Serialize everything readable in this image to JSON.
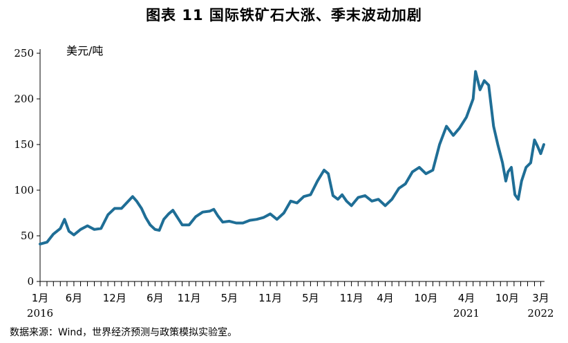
{
  "title": "图表 11   国际铁矿石大涨、季末波动加剧",
  "unit_label": "美元/吨",
  "source": "数据来源：Wind，世界经济预测与政策模拟实验室。",
  "chart_data": {
    "type": "line",
    "title": "图表 11   国际铁矿石大涨、季末波动加剧",
    "ylabel": "美元/吨",
    "xlabel": "",
    "ylim": [
      0,
      250
    ],
    "yticks": [
      0,
      50,
      100,
      150,
      200,
      250
    ],
    "xlim": [
      "2016-01-01",
      "2022-03-18"
    ],
    "grid": false,
    "line_color": "#1F6E96",
    "x_tick_labels": [
      {
        "date": "2016-01-01",
        "label": "1月",
        "year": "2016"
      },
      {
        "date": "2016-06-01",
        "label": "6月",
        "year": ""
      },
      {
        "date": "2016-12-01",
        "label": "12月",
        "year": ""
      },
      {
        "date": "2017-06-01",
        "label": "6月",
        "year": ""
      },
      {
        "date": "2017-11-01",
        "label": "11月",
        "year": ""
      },
      {
        "date": "2018-05-01",
        "label": "5月",
        "year": ""
      },
      {
        "date": "2018-11-01",
        "label": "11月",
        "year": ""
      },
      {
        "date": "2019-05-01",
        "label": "5月",
        "year": ""
      },
      {
        "date": "2019-11-01",
        "label": "11月",
        "year": ""
      },
      {
        "date": "2020-04-01",
        "label": "4月",
        "year": ""
      },
      {
        "date": "2020-10-01",
        "label": "10月",
        "year": ""
      },
      {
        "date": "2021-04-01",
        "label": "4月",
        "year": "2021"
      },
      {
        "date": "2021-10-01",
        "label": "10月",
        "year": ""
      },
      {
        "date": "2022-03-01",
        "label": "3月",
        "year": "2022"
      }
    ],
    "series": [
      {
        "name": "",
        "points": [
          [
            "2016-01-01",
            41
          ],
          [
            "2016-02-01",
            43
          ],
          [
            "2016-03-01",
            52
          ],
          [
            "2016-04-01",
            58
          ],
          [
            "2016-04-20",
            68
          ],
          [
            "2016-05-10",
            55
          ],
          [
            "2016-06-01",
            51
          ],
          [
            "2016-07-01",
            57
          ],
          [
            "2016-08-01",
            61
          ],
          [
            "2016-09-01",
            57
          ],
          [
            "2016-10-01",
            58
          ],
          [
            "2016-11-01",
            73
          ],
          [
            "2016-12-01",
            80
          ],
          [
            "2017-01-01",
            80
          ],
          [
            "2017-02-01",
            88
          ],
          [
            "2017-02-20",
            93
          ],
          [
            "2017-03-10",
            88
          ],
          [
            "2017-04-01",
            80
          ],
          [
            "2017-04-20",
            70
          ],
          [
            "2017-05-10",
            62
          ],
          [
            "2017-06-01",
            57
          ],
          [
            "2017-06-20",
            56
          ],
          [
            "2017-07-10",
            68
          ],
          [
            "2017-08-01",
            74
          ],
          [
            "2017-08-20",
            78
          ],
          [
            "2017-09-10",
            70
          ],
          [
            "2017-10-01",
            62
          ],
          [
            "2017-11-01",
            62
          ],
          [
            "2017-12-01",
            71
          ],
          [
            "2018-01-01",
            76
          ],
          [
            "2018-02-01",
            77
          ],
          [
            "2018-02-20",
            79
          ],
          [
            "2018-03-10",
            72
          ],
          [
            "2018-04-01",
            65
          ],
          [
            "2018-05-01",
            66
          ],
          [
            "2018-06-01",
            64
          ],
          [
            "2018-07-01",
            64
          ],
          [
            "2018-08-01",
            67
          ],
          [
            "2018-09-01",
            68
          ],
          [
            "2018-10-01",
            70
          ],
          [
            "2018-11-01",
            74
          ],
          [
            "2018-12-01",
            68
          ],
          [
            "2019-01-01",
            75
          ],
          [
            "2019-02-01",
            88
          ],
          [
            "2019-03-01",
            86
          ],
          [
            "2019-04-01",
            93
          ],
          [
            "2019-05-01",
            95
          ],
          [
            "2019-06-01",
            110
          ],
          [
            "2019-07-01",
            122
          ],
          [
            "2019-07-20",
            118
          ],
          [
            "2019-08-10",
            94
          ],
          [
            "2019-09-01",
            90
          ],
          [
            "2019-09-20",
            95
          ],
          [
            "2019-10-10",
            88
          ],
          [
            "2019-11-01",
            83
          ],
          [
            "2019-12-01",
            92
          ],
          [
            "2020-01-01",
            94
          ],
          [
            "2020-02-01",
            88
          ],
          [
            "2020-03-01",
            90
          ],
          [
            "2020-04-01",
            83
          ],
          [
            "2020-05-01",
            90
          ],
          [
            "2020-06-01",
            102
          ],
          [
            "2020-07-01",
            107
          ],
          [
            "2020-08-01",
            120
          ],
          [
            "2020-09-01",
            125
          ],
          [
            "2020-10-01",
            118
          ],
          [
            "2020-11-01",
            122
          ],
          [
            "2020-12-01",
            150
          ],
          [
            "2021-01-01",
            170
          ],
          [
            "2021-02-01",
            160
          ],
          [
            "2021-03-01",
            168
          ],
          [
            "2021-04-01",
            180
          ],
          [
            "2021-05-01",
            200
          ],
          [
            "2021-05-12",
            230
          ],
          [
            "2021-06-01",
            210
          ],
          [
            "2021-06-20",
            220
          ],
          [
            "2021-07-10",
            215
          ],
          [
            "2021-08-01",
            170
          ],
          [
            "2021-08-20",
            150
          ],
          [
            "2021-09-10",
            130
          ],
          [
            "2021-09-25",
            110
          ],
          [
            "2021-10-05",
            120
          ],
          [
            "2021-10-20",
            125
          ],
          [
            "2021-11-05",
            95
          ],
          [
            "2021-11-20",
            90
          ],
          [
            "2021-12-05",
            110
          ],
          [
            "2021-12-25",
            125
          ],
          [
            "2022-01-15",
            130
          ],
          [
            "2022-02-01",
            155
          ],
          [
            "2022-02-15",
            148
          ],
          [
            "2022-03-01",
            140
          ],
          [
            "2022-03-15",
            150
          ]
        ]
      }
    ]
  }
}
